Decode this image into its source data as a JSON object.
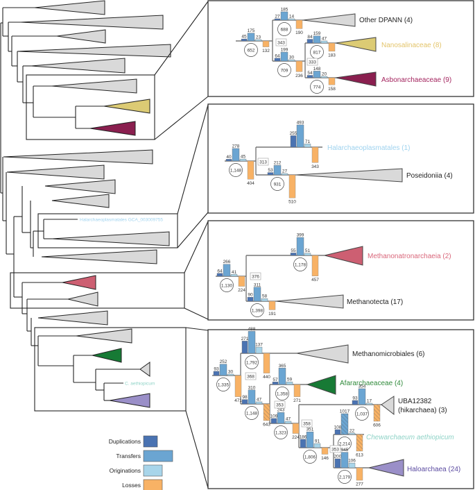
{
  "colors": {
    "duplications": "#4a73b2",
    "transfers": "#6ba5d2",
    "originations": "#a8d5ea",
    "losses": "#f8b265",
    "collapsed_clade": "#d9d9d9"
  },
  "tree": {
    "leaf_labels": [
      {
        "text": "Halarchaeoplasmatales GCA_003009755",
        "color": "#9fd3ef"
      },
      {
        "text": "C. aethiopicum",
        "color": "#8fd3c7"
      }
    ]
  },
  "legend": [
    {
      "label": "Duplications",
      "key": "duplications"
    },
    {
      "label": "Transfers",
      "key": "transfers"
    },
    {
      "label": "Originations",
      "key": "originations"
    },
    {
      "label": "Losses",
      "key": "losses"
    }
  ],
  "panels": [
    {
      "nodes": [
        {
          "duplications": 45,
          "transfers": 175,
          "originations": 23,
          "losses": 132,
          "total": "652"
        },
        {
          "duplications": 27,
          "transfers": 185,
          "originations": 14,
          "losses": 190,
          "total": "688"
        },
        {
          "duplications": 64,
          "transfers": 199,
          "originations": 30,
          "losses": 236,
          "total": "709"
        },
        {
          "duplications": 84,
          "transfers": 159,
          "originations": 47,
          "losses": 183,
          "total": "817"
        },
        {
          "duplications": 54,
          "transfers": 148,
          "originations": 20,
          "losses": 158,
          "total": "774"
        }
      ],
      "internal_labels": [
        "343",
        "333"
      ],
      "clades": [
        {
          "label": "Other DPANN (4)",
          "fill": "#d9d9d9",
          "label_color": "#222222"
        },
        {
          "label": "Nanosalinaceae (8)",
          "fill": "#dccb74",
          "label_color": "#e3c46a"
        },
        {
          "label": "Asbonarchaeaceae (9)",
          "fill": "#8a1f4f",
          "label_color": "#a3245e"
        }
      ]
    },
    {
      "nodes": [
        {
          "duplications": 40,
          "transfers": 278,
          "originations": 45,
          "losses": 404,
          "total": "1,148"
        },
        {
          "duplications": 255,
          "transfers": 493,
          "originations": 71,
          "losses": 343,
          "total": ""
        },
        {
          "duplications": 53,
          "transfers": 212,
          "originations": 27,
          "losses": 510,
          "total": "931"
        }
      ],
      "internal_labels": [
        "313"
      ],
      "clades": [
        {
          "label": "Halarchaeoplasmatales (1)",
          "fill": "",
          "label_color": "#9fd3ef"
        },
        {
          "label": "Poseidoniia (4)",
          "fill": "#d9d9d9",
          "label_color": "#222222"
        }
      ]
    },
    {
      "nodes": [
        {
          "duplications": 64,
          "transfers": 266,
          "originations": 41,
          "losses": 224,
          "total": "1,130"
        },
        {
          "duplications": 55,
          "transfers": 399,
          "originations": 51,
          "losses": 457,
          "total": "1,178"
        },
        {
          "duplications": 90,
          "transfers": 311,
          "originations": 58,
          "losses": 191,
          "total": "1,398"
        }
      ],
      "internal_labels": [
        "376"
      ],
      "clades": [
        {
          "label": "Methanonatronarchaeia (2)",
          "fill": "#cd5f72",
          "label_color": "#d9667a"
        },
        {
          "label": "Methanotecta (17)",
          "fill": "#d9d9d9",
          "label_color": "#222222"
        }
      ]
    },
    {
      "nodes": [
        {
          "duplications": 93,
          "transfers": 252,
          "originations": 30,
          "losses": 471,
          "total": "1,335"
        },
        {
          "duplications": 271,
          "transfers": 488,
          "originations": 137,
          "losses": 440,
          "total": "1,792"
        },
        {
          "duplications": 98,
          "transfers": 310,
          "originations": 47,
          "losses": 643,
          "total": "1,148"
        },
        {
          "duplications": 57,
          "transfers": 365,
          "originations": 59,
          "losses": 271,
          "total": "1,358"
        },
        {
          "duplications": 109,
          "transfers": 243,
          "originations": 47,
          "losses": 224,
          "total": "1,323"
        },
        {
          "duplications": 93,
          "transfers": 354,
          "originations": 17,
          "losses": 606,
          "total": "1,037"
        },
        {
          "duplications": 186,
          "transfers": 351,
          "originations": 91,
          "losses": 146,
          "total": "1,806"
        },
        {
          "duplications": 108,
          "transfers": 1017,
          "originations": 22,
          "losses": 613,
          "total": "2,214"
        },
        {
          "duplications": 200,
          "transfers": 345,
          "originations": 106,
          "losses": 277,
          "total": "2,179"
        }
      ],
      "internal_labels": [
        "368",
        "353",
        "358",
        "353"
      ],
      "clades": [
        {
          "label": "Methanomicrobiales (6)",
          "fill": "#d9d9d9",
          "label_color": "#222222"
        },
        {
          "label": "Afararchaeaceae (4)",
          "fill": "#177a35",
          "label_color": "#2f8a3a"
        },
        {
          "label": "UBA12382",
          "label2": "(hikarchaea) (3)",
          "fill": "#d9d9d9",
          "label_color": "#222222"
        },
        {
          "label": "Chewarchaeum aethiopicum",
          "fill": "",
          "label_color": "#8fd3c7",
          "italic": true
        },
        {
          "label": "Haloarchaea (24)",
          "fill": "#9a8fc8",
          "label_color": "#5a4aa0"
        }
      ]
    }
  ]
}
